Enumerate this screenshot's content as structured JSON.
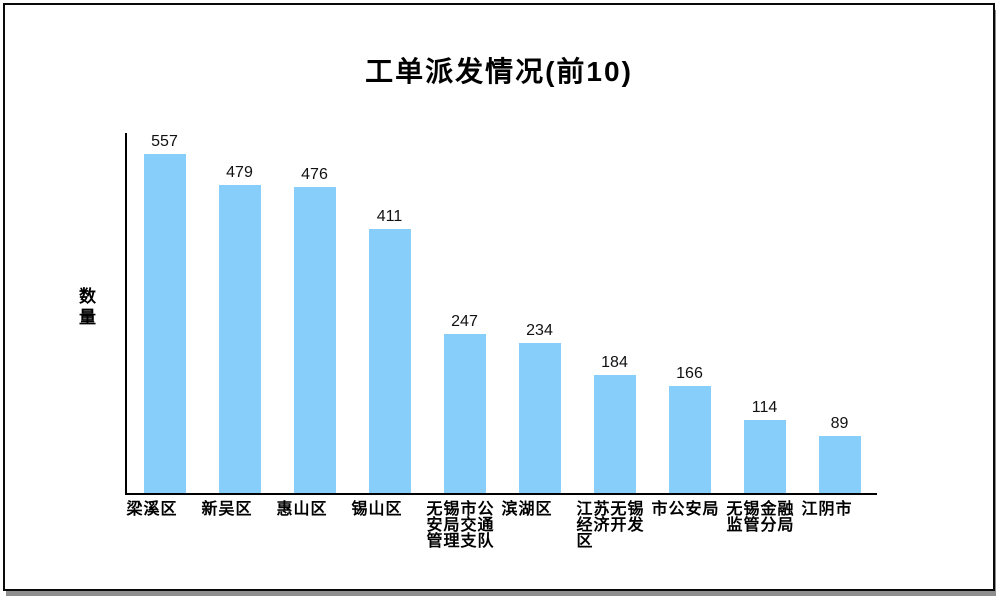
{
  "chart_data": {
    "type": "bar",
    "title": "工单派发情况(前10)",
    "ylabel": "数量",
    "xlabel": "",
    "categories": [
      "梁溪区",
      "新吴区",
      "惠山区",
      "锡山区",
      "无锡市公安局交通管理支队",
      "滨湖区",
      "江苏无锡经济开发区",
      "市公安局",
      "无锡金融监管分局",
      "江阴市"
    ],
    "values": [
      557,
      479,
      476,
      411,
      247,
      234,
      184,
      166,
      114,
      89
    ],
    "ylim": [
      0,
      560
    ],
    "grid": false,
    "legend": "none",
    "value_labels_shown": true,
    "bar_color": "#87CEFA",
    "axis_color": "#000000",
    "text_color": "#000000",
    "background_color": "#ffffff"
  }
}
